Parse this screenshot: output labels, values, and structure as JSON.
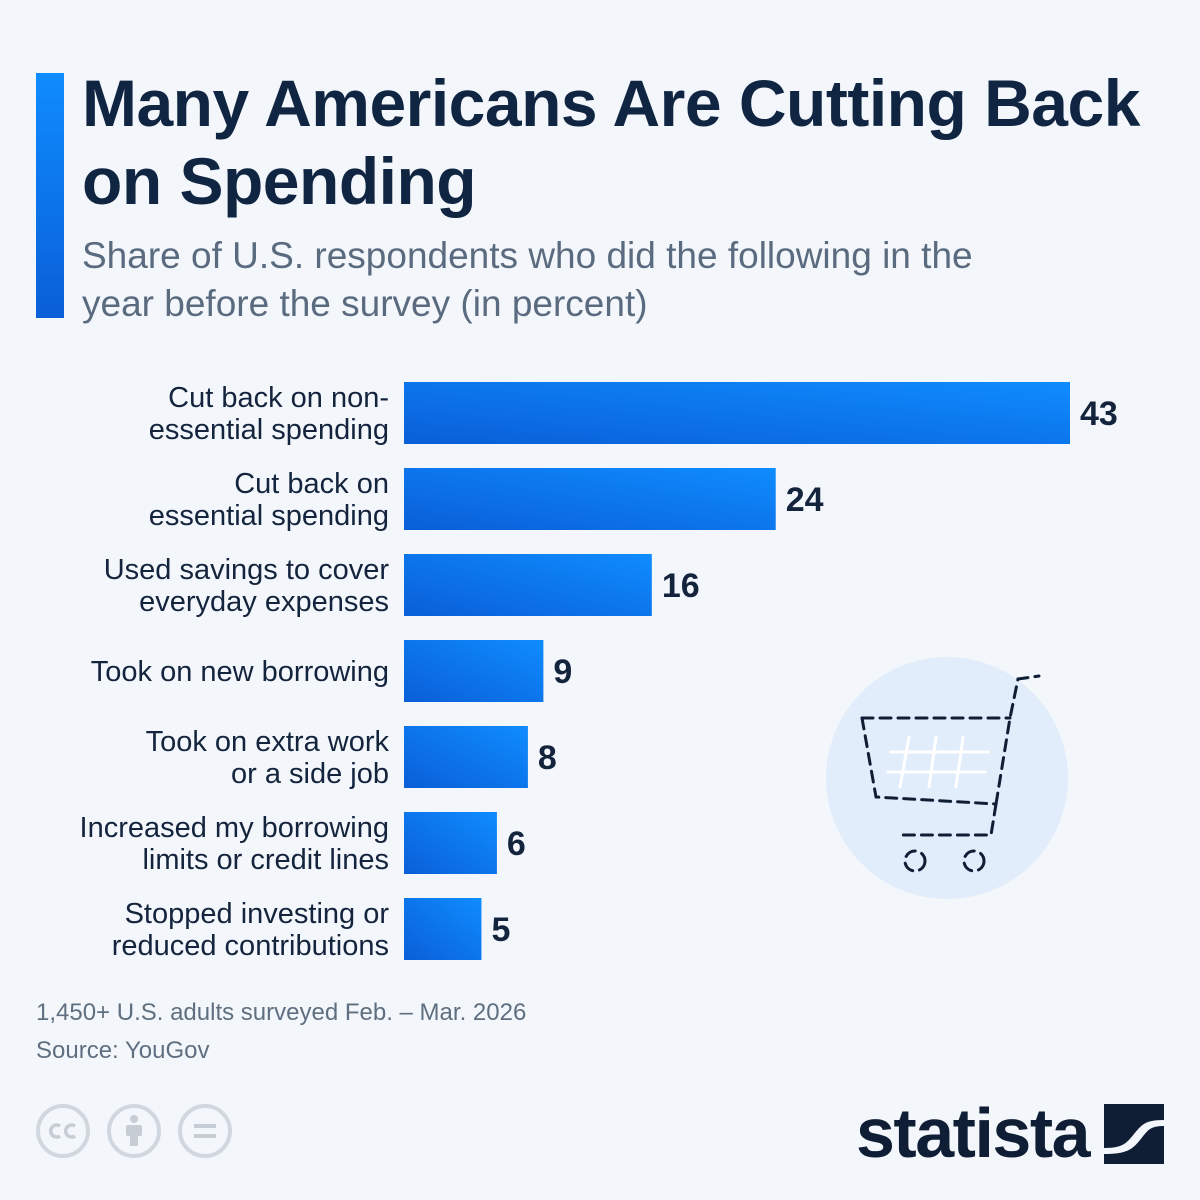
{
  "header": {
    "title": "Many Americans Are Cutting Back on Spending",
    "subtitle": "Share of U.S. respondents who did the following in the year before the survey (in percent)"
  },
  "chart_data": {
    "type": "bar",
    "orientation": "horizontal",
    "title": "Many Americans Are Cutting Back on Spending",
    "subtitle": "Share of U.S. respondents who did the following in the year before the survey (in percent)",
    "categories": [
      [
        "Cut back on non-",
        "essential spending"
      ],
      [
        "Cut back on",
        "essential spending"
      ],
      [
        "Used savings to cover",
        "everyday expenses"
      ],
      [
        "Took on new borrowing"
      ],
      [
        "Took on extra work",
        "or a side job"
      ],
      [
        "Increased my borrowing",
        "limits or credit lines"
      ],
      [
        "Stopped investing or",
        "reduced contributions"
      ]
    ],
    "values": [
      43,
      24,
      16,
      9,
      8,
      6,
      5
    ],
    "xlim": [
      0,
      43
    ],
    "grid": false,
    "bar_color_start": "#0a5fd8",
    "bar_color_end": "#0f8cff"
  },
  "footer": {
    "note": "1,450+ U.S. adults surveyed Feb. – Mar. 2026",
    "source": "Source: YouGov",
    "brand": "statista"
  },
  "icons": {
    "decoration": "shopping-cart-icon",
    "license": [
      "cc-icon",
      "attribution-icon",
      "no-derivatives-icon"
    ]
  },
  "colors": {
    "title": "#102542",
    "subtitle": "#5b6b7f",
    "accent": "#0f8cff",
    "background": "#f3f7fb"
  }
}
